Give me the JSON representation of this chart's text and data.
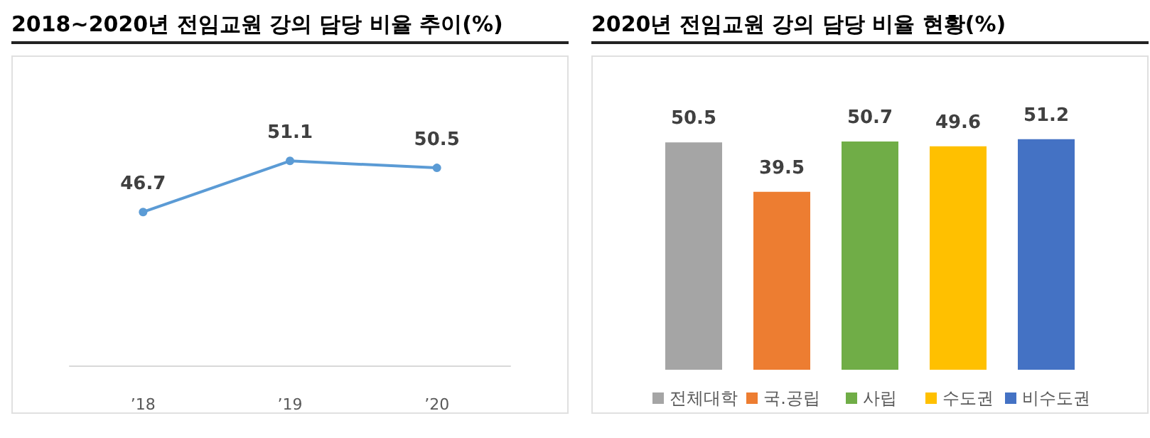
{
  "chart_data": [
    {
      "type": "line",
      "title": "2018~2020년 전임교원 강의 담당 비율 추이(%)",
      "categories": [
        "’18",
        "’19",
        "’20"
      ],
      "series": [
        {
          "color": "#5b9bd5",
          "values": [
            46.7,
            51.1,
            50.5
          ]
        }
      ],
      "data_labels": true,
      "marker": "circle",
      "line_style": "solid",
      "tick_labels": "x",
      "grid": false,
      "legend": false
    },
    {
      "type": "bar",
      "title": "2020년 전임교원 강의 담당 비율 현황(%)",
      "categories": [
        "전체대학",
        "국.공립",
        "사립",
        "수도권",
        "비수도권"
      ],
      "series": [
        {
          "values": [
            50.5,
            39.5,
            50.7,
            49.6,
            51.2
          ],
          "colors": [
            "#a5a5a5",
            "#ed7d31",
            "#70ad47",
            "#ffc000",
            "#4472c4"
          ]
        }
      ],
      "data_labels": true,
      "tick_labels": "x",
      "grid": false
    }
  ]
}
